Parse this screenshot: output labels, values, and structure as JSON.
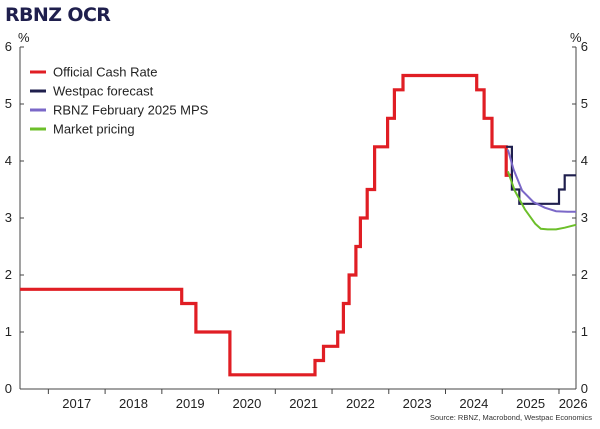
{
  "title": "RBNZ OCR",
  "source": "Source: RBNZ, Macrobond, Westpac Economics",
  "colors": {
    "ocr": "#e01e24",
    "westpac": "#1f1f4d",
    "rbnz": "#7b68c8",
    "market": "#6cbf2a",
    "axis": "#444444"
  },
  "chart_data": {
    "type": "line",
    "title": "RBNZ OCR",
    "ylabel_left": "%",
    "ylabel_right": "%",
    "ylim": [
      0,
      6
    ],
    "xlim": [
      2016.5,
      2026.3
    ],
    "yticks": [
      0,
      1,
      2,
      3,
      4,
      5,
      6
    ],
    "xticks": [
      "2017",
      "2018",
      "2019",
      "2020",
      "2021",
      "2022",
      "2023",
      "2024",
      "2025",
      "2026"
    ],
    "legend_position": "top-left",
    "grid": false,
    "series": [
      {
        "name": "Official Cash Rate",
        "color": "#e01e24",
        "step": true,
        "points": [
          [
            2016.5,
            1.75
          ],
          [
            2019.35,
            1.75
          ],
          [
            2019.35,
            1.5
          ],
          [
            2019.6,
            1.5
          ],
          [
            2019.6,
            1.0
          ],
          [
            2020.2,
            1.0
          ],
          [
            2020.2,
            0.25
          ],
          [
            2021.7,
            0.25
          ],
          [
            2021.7,
            0.5
          ],
          [
            2021.85,
            0.5
          ],
          [
            2021.85,
            0.75
          ],
          [
            2022.1,
            0.75
          ],
          [
            2022.1,
            1.0
          ],
          [
            2022.2,
            1.0
          ],
          [
            2022.2,
            1.5
          ],
          [
            2022.3,
            1.5
          ],
          [
            2022.3,
            2.0
          ],
          [
            2022.42,
            2.0
          ],
          [
            2022.42,
            2.5
          ],
          [
            2022.5,
            2.5
          ],
          [
            2022.5,
            3.0
          ],
          [
            2022.62,
            3.0
          ],
          [
            2022.62,
            3.5
          ],
          [
            2022.75,
            3.5
          ],
          [
            2022.75,
            4.25
          ],
          [
            2022.98,
            4.25
          ],
          [
            2022.98,
            4.75
          ],
          [
            2023.1,
            4.75
          ],
          [
            2023.1,
            5.25
          ],
          [
            2023.25,
            5.25
          ],
          [
            2023.25,
            5.5
          ],
          [
            2024.55,
            5.5
          ],
          [
            2024.55,
            5.25
          ],
          [
            2024.68,
            5.25
          ],
          [
            2024.68,
            4.75
          ],
          [
            2024.82,
            4.75
          ],
          [
            2024.82,
            4.25
          ],
          [
            2025.07,
            4.25
          ],
          [
            2025.07,
            3.75
          ],
          [
            2025.17,
            3.75
          ]
        ]
      },
      {
        "name": "Westpac forecast",
        "color": "#1f1f4d",
        "step": true,
        "points": [
          [
            2025.07,
            4.25
          ],
          [
            2025.17,
            4.25
          ],
          [
            2025.17,
            3.5
          ],
          [
            2025.3,
            3.5
          ],
          [
            2025.3,
            3.25
          ],
          [
            2026.0,
            3.25
          ],
          [
            2026.0,
            3.5
          ],
          [
            2026.1,
            3.5
          ],
          [
            2026.1,
            3.75
          ],
          [
            2026.3,
            3.75
          ]
        ]
      },
      {
        "name": "RBNZ February 2025 MPS",
        "color": "#7b68c8",
        "step": false,
        "points": [
          [
            2025.1,
            4.2
          ],
          [
            2025.2,
            3.85
          ],
          [
            2025.35,
            3.48
          ],
          [
            2025.55,
            3.28
          ],
          [
            2025.75,
            3.18
          ],
          [
            2025.95,
            3.12
          ],
          [
            2026.15,
            3.11
          ],
          [
            2026.3,
            3.11
          ]
        ]
      },
      {
        "name": "Market pricing",
        "color": "#6cbf2a",
        "step": false,
        "points": [
          [
            2025.1,
            3.82
          ],
          [
            2025.22,
            3.48
          ],
          [
            2025.4,
            3.15
          ],
          [
            2025.58,
            2.9
          ],
          [
            2025.68,
            2.81
          ],
          [
            2025.8,
            2.8
          ],
          [
            2025.95,
            2.8
          ],
          [
            2026.1,
            2.83
          ],
          [
            2026.3,
            2.88
          ]
        ]
      }
    ]
  }
}
